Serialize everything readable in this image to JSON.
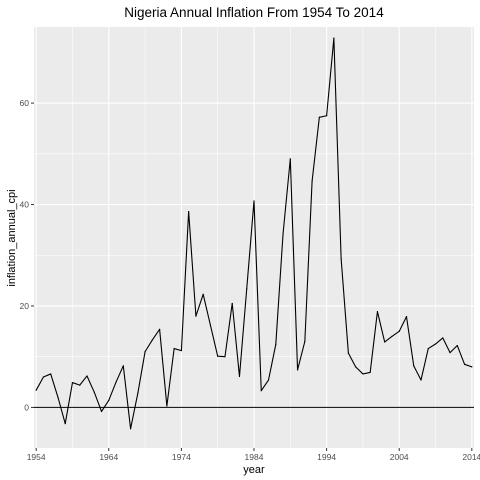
{
  "chart_data": {
    "type": "line",
    "title": "Nigeria Annual Inflation From 1954 To 2014",
    "xlabel": "year",
    "ylabel": "inflation_annual_cpi",
    "xlim": [
      1953.7,
      2014.3
    ],
    "ylim": [
      -8,
      75
    ],
    "x_ticks": [
      1954,
      1964,
      1974,
      1984,
      1994,
      2004,
      2014
    ],
    "y_ticks": [
      0,
      20,
      40,
      60
    ],
    "x_tick_labels": [
      "1954",
      "1964",
      "1974",
      "1984",
      "1994",
      "2004",
      "2014"
    ],
    "y_tick_labels": [
      "0",
      "20",
      "40",
      "60"
    ],
    "reference_line_y": 0,
    "grid": true,
    "panel_background": "#ebebeb",
    "grid_color": "#ffffff",
    "line_color": "#000000",
    "series": [
      {
        "x": [
          1954,
          1955,
          1956,
          1957,
          1958,
          1959,
          1960,
          1961,
          1962,
          1963,
          1964,
          1965,
          1966,
          1967,
          1968,
          1969,
          1970,
          1971,
          1972,
          1973,
          1974,
          1975,
          1976,
          1977,
          1978,
          1979,
          1980,
          1981,
          1982,
          1983,
          1984,
          1985,
          1986,
          1987,
          1988,
          1989,
          1990,
          1991,
          1992,
          1993,
          1994,
          1995,
          1996,
          1997,
          1998,
          1999,
          2000,
          2001,
          2002,
          2003,
          2004,
          2005,
          2006,
          2007,
          2008,
          2009,
          2010,
          2011,
          2012,
          2013,
          2014
        ],
        "values": [
          3.4,
          6.0,
          6.6,
          2.0,
          -3.2,
          4.9,
          4.4,
          6.2,
          3.0,
          -0.8,
          1.4,
          5.0,
          8.2,
          -4.2,
          2.8,
          11.0,
          13.3,
          15.4,
          0.3,
          11.6,
          11.2,
          38.6,
          18.0,
          22.3,
          16.2,
          10.1,
          10.0,
          20.5,
          6.1,
          23.4,
          40.7,
          3.3,
          5.4,
          12.4,
          34.2,
          49.0,
          7.4,
          13.0,
          44.6,
          57.2,
          57.5,
          72.8,
          29.3,
          10.7,
          8.0,
          6.6,
          6.9,
          18.9,
          12.9,
          14.0,
          15.0,
          17.9,
          8.2,
          5.4,
          11.6,
          12.5,
          13.7,
          10.8,
          12.2,
          8.5,
          8.0
        ]
      }
    ]
  }
}
